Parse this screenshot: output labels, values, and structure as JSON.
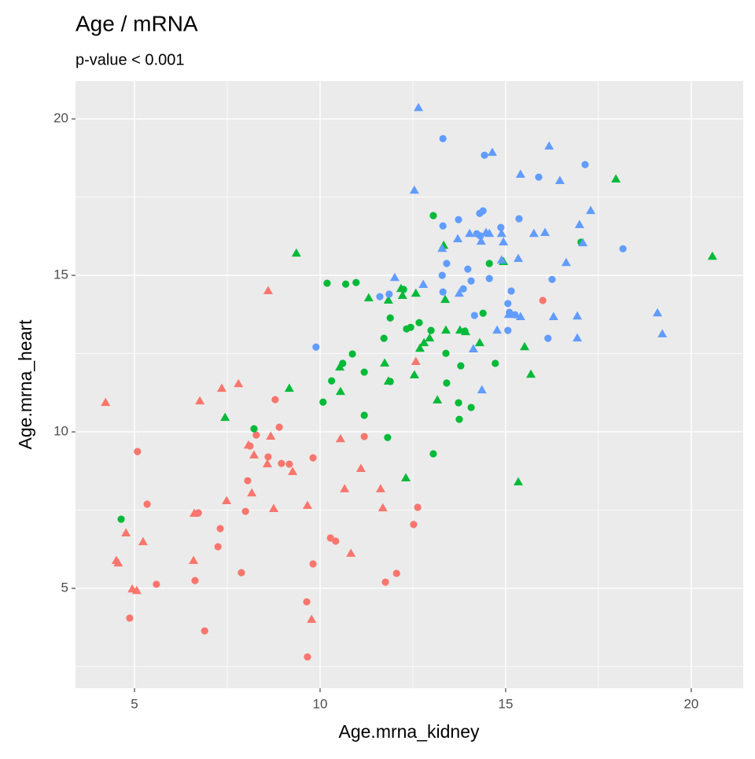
{
  "chart_data": {
    "type": "scatter",
    "title": "Age / mRNA",
    "subtitle": "p-value < 0.001",
    "x_label": "Age.mrna_kidney",
    "y_label": "Age.mrna_heart",
    "xlim": [
      3.41,
      21.4
    ],
    "ylim": [
      1.81,
      21.21
    ],
    "xticks": [
      5,
      10,
      15,
      20
    ],
    "yticks": [
      5,
      10,
      15,
      20
    ],
    "x_minor_grid": [
      7.5,
      12.5,
      17.5
    ],
    "y_minor_grid": [
      2.5,
      7.5,
      12.5,
      17.5
    ],
    "grid": true,
    "panel_color": "#EBEBEB",
    "series": [
      {
        "color": "#F8766D",
        "shape": "circle",
        "x": [
          5.08,
          5.34,
          5.59,
          4.87,
          6.89,
          6.63,
          6.72,
          7.31,
          7.25,
          7.88,
          7.99,
          8.05,
          8.11,
          8.28,
          8.6,
          8.79,
          8.9,
          8.96,
          9.17,
          9.81,
          9.81,
          9.64,
          9.66,
          10.28,
          10.42,
          11.19,
          11.76,
          12.06,
          12.52,
          12.63,
          16.0
        ],
        "y": [
          9.37,
          7.69,
          5.13,
          4.05,
          3.64,
          5.25,
          7.41,
          6.91,
          6.33,
          5.5,
          7.46,
          8.44,
          9.55,
          9.9,
          9.2,
          11.03,
          10.15,
          8.99,
          8.97,
          9.17,
          5.78,
          4.57,
          2.81,
          6.61,
          6.51,
          9.85,
          5.2,
          5.48,
          7.04,
          7.59,
          14.2
        ]
      },
      {
        "color": "#F8766D",
        "shape": "triangle",
        "x": [
          4.22,
          4.77,
          4.51,
          4.56,
          4.94,
          5.06,
          5.23,
          6.59,
          6.61,
          6.76,
          7.35,
          7.48,
          7.8,
          8.07,
          8.16,
          8.22,
          8.58,
          8.67,
          8.75,
          8.6,
          9.26,
          9.66,
          9.77,
          10.55,
          10.66,
          10.83,
          11.1,
          11.63,
          11.69,
          12.58
        ],
        "y": [
          10.93,
          6.76,
          5.88,
          5.8,
          4.97,
          4.92,
          6.48,
          5.88,
          7.39,
          10.98,
          11.38,
          7.79,
          11.53,
          9.57,
          8.04,
          9.25,
          8.97,
          9.85,
          7.54,
          14.5,
          8.72,
          7.64,
          4.0,
          9.77,
          8.17,
          6.11,
          8.82,
          8.17,
          7.56,
          12.24
        ]
      },
      {
        "color": "#00BA38",
        "shape": "circle",
        "x": [
          4.64,
          8.22,
          10.08,
          10.19,
          10.31,
          10.61,
          10.69,
          10.87,
          10.97,
          11.19,
          11.19,
          11.72,
          11.82,
          11.89,
          11.89,
          12.25,
          12.33,
          12.44,
          12.67,
          12.99,
          13.05,
          13.05,
          13.39,
          13.41,
          13.73,
          13.75,
          13.79,
          13.9,
          14.07,
          14.39,
          14.56,
          14.72,
          17.03
        ],
        "y": [
          7.21,
          10.1,
          10.95,
          14.75,
          11.63,
          12.19,
          14.72,
          12.49,
          14.77,
          11.91,
          10.53,
          12.99,
          9.82,
          13.64,
          11.61,
          14.55,
          13.29,
          13.34,
          13.49,
          13.24,
          9.3,
          16.91,
          12.51,
          11.56,
          10.93,
          10.4,
          12.11,
          13.22,
          10.78,
          13.79,
          15.38,
          12.19,
          16.06
        ]
      },
      {
        "color": "#00BA38",
        "shape": "triangle",
        "x": [
          9.36,
          9.17,
          7.44,
          10.53,
          10.55,
          11.31,
          11.74,
          11.84,
          11.84,
          12.18,
          12.22,
          12.31,
          12.54,
          12.58,
          12.69,
          12.8,
          12.95,
          13.16,
          13.33,
          13.37,
          13.39,
          13.77,
          13.92,
          14.3,
          14.94,
          15.34,
          15.51,
          15.68,
          17.97,
          20.57
        ],
        "y": [
          15.7,
          11.38,
          10.45,
          12.06,
          11.28,
          14.27,
          12.19,
          14.2,
          11.61,
          14.57,
          14.35,
          8.52,
          11.81,
          14.42,
          12.66,
          12.84,
          12.99,
          11.01,
          15.95,
          14.22,
          13.24,
          13.24,
          13.19,
          12.84,
          15.43,
          8.39,
          12.71,
          11.83,
          18.07,
          15.6
        ]
      },
      {
        "color": "#619CFF",
        "shape": "circle",
        "x": [
          9.89,
          11.61,
          11.86,
          13.31,
          13.29,
          13.31,
          13.41,
          13.31,
          13.73,
          13.86,
          13.98,
          14.07,
          14.16,
          14.22,
          14.3,
          14.39,
          14.32,
          14.43,
          14.56,
          14.87,
          15.06,
          15.1,
          15.06,
          15.15,
          15.25,
          15.36,
          15.89,
          16.14,
          16.25,
          17.14,
          18.16
        ],
        "y": [
          12.71,
          14.32,
          14.4,
          14.47,
          15.0,
          16.58,
          15.38,
          19.37,
          16.78,
          14.57,
          15.2,
          14.82,
          13.72,
          16.33,
          16.98,
          17.06,
          16.26,
          18.84,
          14.9,
          16.53,
          14.1,
          13.82,
          13.24,
          14.5,
          13.74,
          16.81,
          18.14,
          12.99,
          14.87,
          18.54,
          15.85
        ]
      },
      {
        "color": "#619CFF",
        "shape": "triangle",
        "x": [
          12.65,
          12.54,
          12.01,
          12.78,
          13.29,
          13.71,
          14.03,
          13.75,
          14.13,
          14.36,
          14.34,
          14.47,
          14.56,
          14.64,
          14.89,
          14.94,
          14.89,
          15.08,
          15.34,
          15.4,
          15.4,
          14.77,
          15.76,
          16.06,
          16.17,
          16.29,
          16.46,
          16.63,
          16.93,
          16.93,
          16.99,
          17.08,
          17.29,
          19.09,
          19.22
        ],
        "y": [
          20.35,
          17.71,
          14.92,
          14.7,
          15.85,
          16.16,
          16.33,
          14.42,
          12.64,
          11.33,
          16.08,
          16.36,
          16.33,
          18.92,
          16.33,
          16.06,
          15.48,
          13.74,
          15.53,
          13.67,
          18.22,
          13.24,
          16.33,
          16.36,
          19.12,
          13.67,
          18.02,
          15.4,
          13.69,
          12.99,
          16.61,
          16.03,
          17.06,
          13.79,
          13.12
        ]
      }
    ]
  }
}
